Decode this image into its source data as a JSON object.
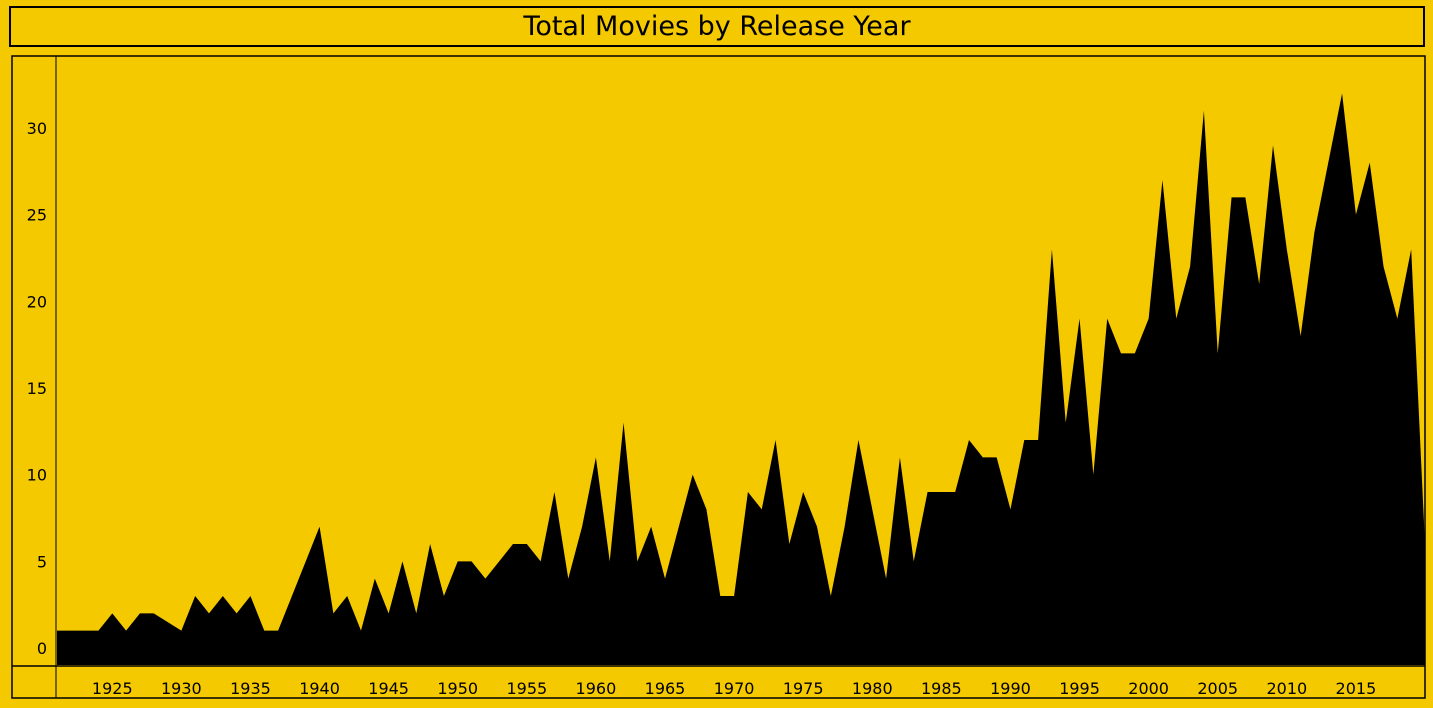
{
  "title": "Total Movies by Release Year",
  "colors": {
    "background": "#F5C900",
    "area": "#000000",
    "frame": "#000000"
  },
  "chart_data": {
    "type": "area",
    "title": "Total Movies by Release Year",
    "xlabel": "",
    "ylabel": "",
    "xlim": [
      1921,
      2020
    ],
    "ylim": [
      0,
      34
    ],
    "x_ticks": [
      1925,
      1930,
      1935,
      1940,
      1945,
      1950,
      1955,
      1960,
      1965,
      1970,
      1975,
      1980,
      1985,
      1990,
      1995,
      2000,
      2005,
      2010,
      2015
    ],
    "y_ticks": [
      0,
      5,
      10,
      15,
      20,
      25,
      30
    ],
    "grid": false,
    "x": [
      1921,
      1922,
      1923,
      1924,
      1925,
      1926,
      1927,
      1928,
      1929,
      1930,
      1931,
      1932,
      1933,
      1934,
      1935,
      1936,
      1937,
      1938,
      1939,
      1940,
      1941,
      1942,
      1943,
      1944,
      1945,
      1946,
      1947,
      1948,
      1949,
      1950,
      1951,
      1952,
      1953,
      1954,
      1955,
      1956,
      1957,
      1958,
      1959,
      1960,
      1961,
      1962,
      1963,
      1964,
      1965,
      1966,
      1967,
      1968,
      1969,
      1970,
      1971,
      1972,
      1973,
      1974,
      1975,
      1976,
      1977,
      1978,
      1979,
      1980,
      1981,
      1982,
      1983,
      1984,
      1985,
      1986,
      1987,
      1988,
      1989,
      1990,
      1991,
      1992,
      1993,
      1994,
      1995,
      1996,
      1997,
      1998,
      1999,
      2000,
      2001,
      2002,
      2003,
      2004,
      2005,
      2006,
      2007,
      2008,
      2009,
      2010,
      2011,
      2012,
      2013,
      2014,
      2015,
      2016,
      2017,
      2018,
      2019,
      2020
    ],
    "series": [
      {
        "values": [
          1,
          1,
          1,
          1,
          2,
          1,
          2,
          2,
          1.5,
          1,
          3,
          2,
          3,
          2,
          3,
          1,
          1,
          3,
          5,
          7,
          2,
          3,
          1,
          4,
          2,
          5,
          2,
          6,
          3,
          5,
          5,
          4,
          5,
          6,
          6,
          5,
          9,
          4,
          7,
          11,
          5,
          13,
          5,
          7,
          4,
          7,
          10,
          8,
          3,
          3,
          9,
          8,
          12,
          6,
          9,
          7,
          3,
          7,
          12,
          8,
          4,
          11,
          5,
          9,
          9,
          9,
          12,
          11,
          11,
          8,
          12,
          12,
          23,
          13,
          19,
          10,
          19,
          17,
          17,
          19,
          27,
          19,
          22,
          31,
          17,
          26,
          26,
          21,
          29,
          23,
          18,
          24,
          28,
          32,
          25,
          28,
          22,
          19,
          23,
          6
        ]
      }
    ]
  }
}
